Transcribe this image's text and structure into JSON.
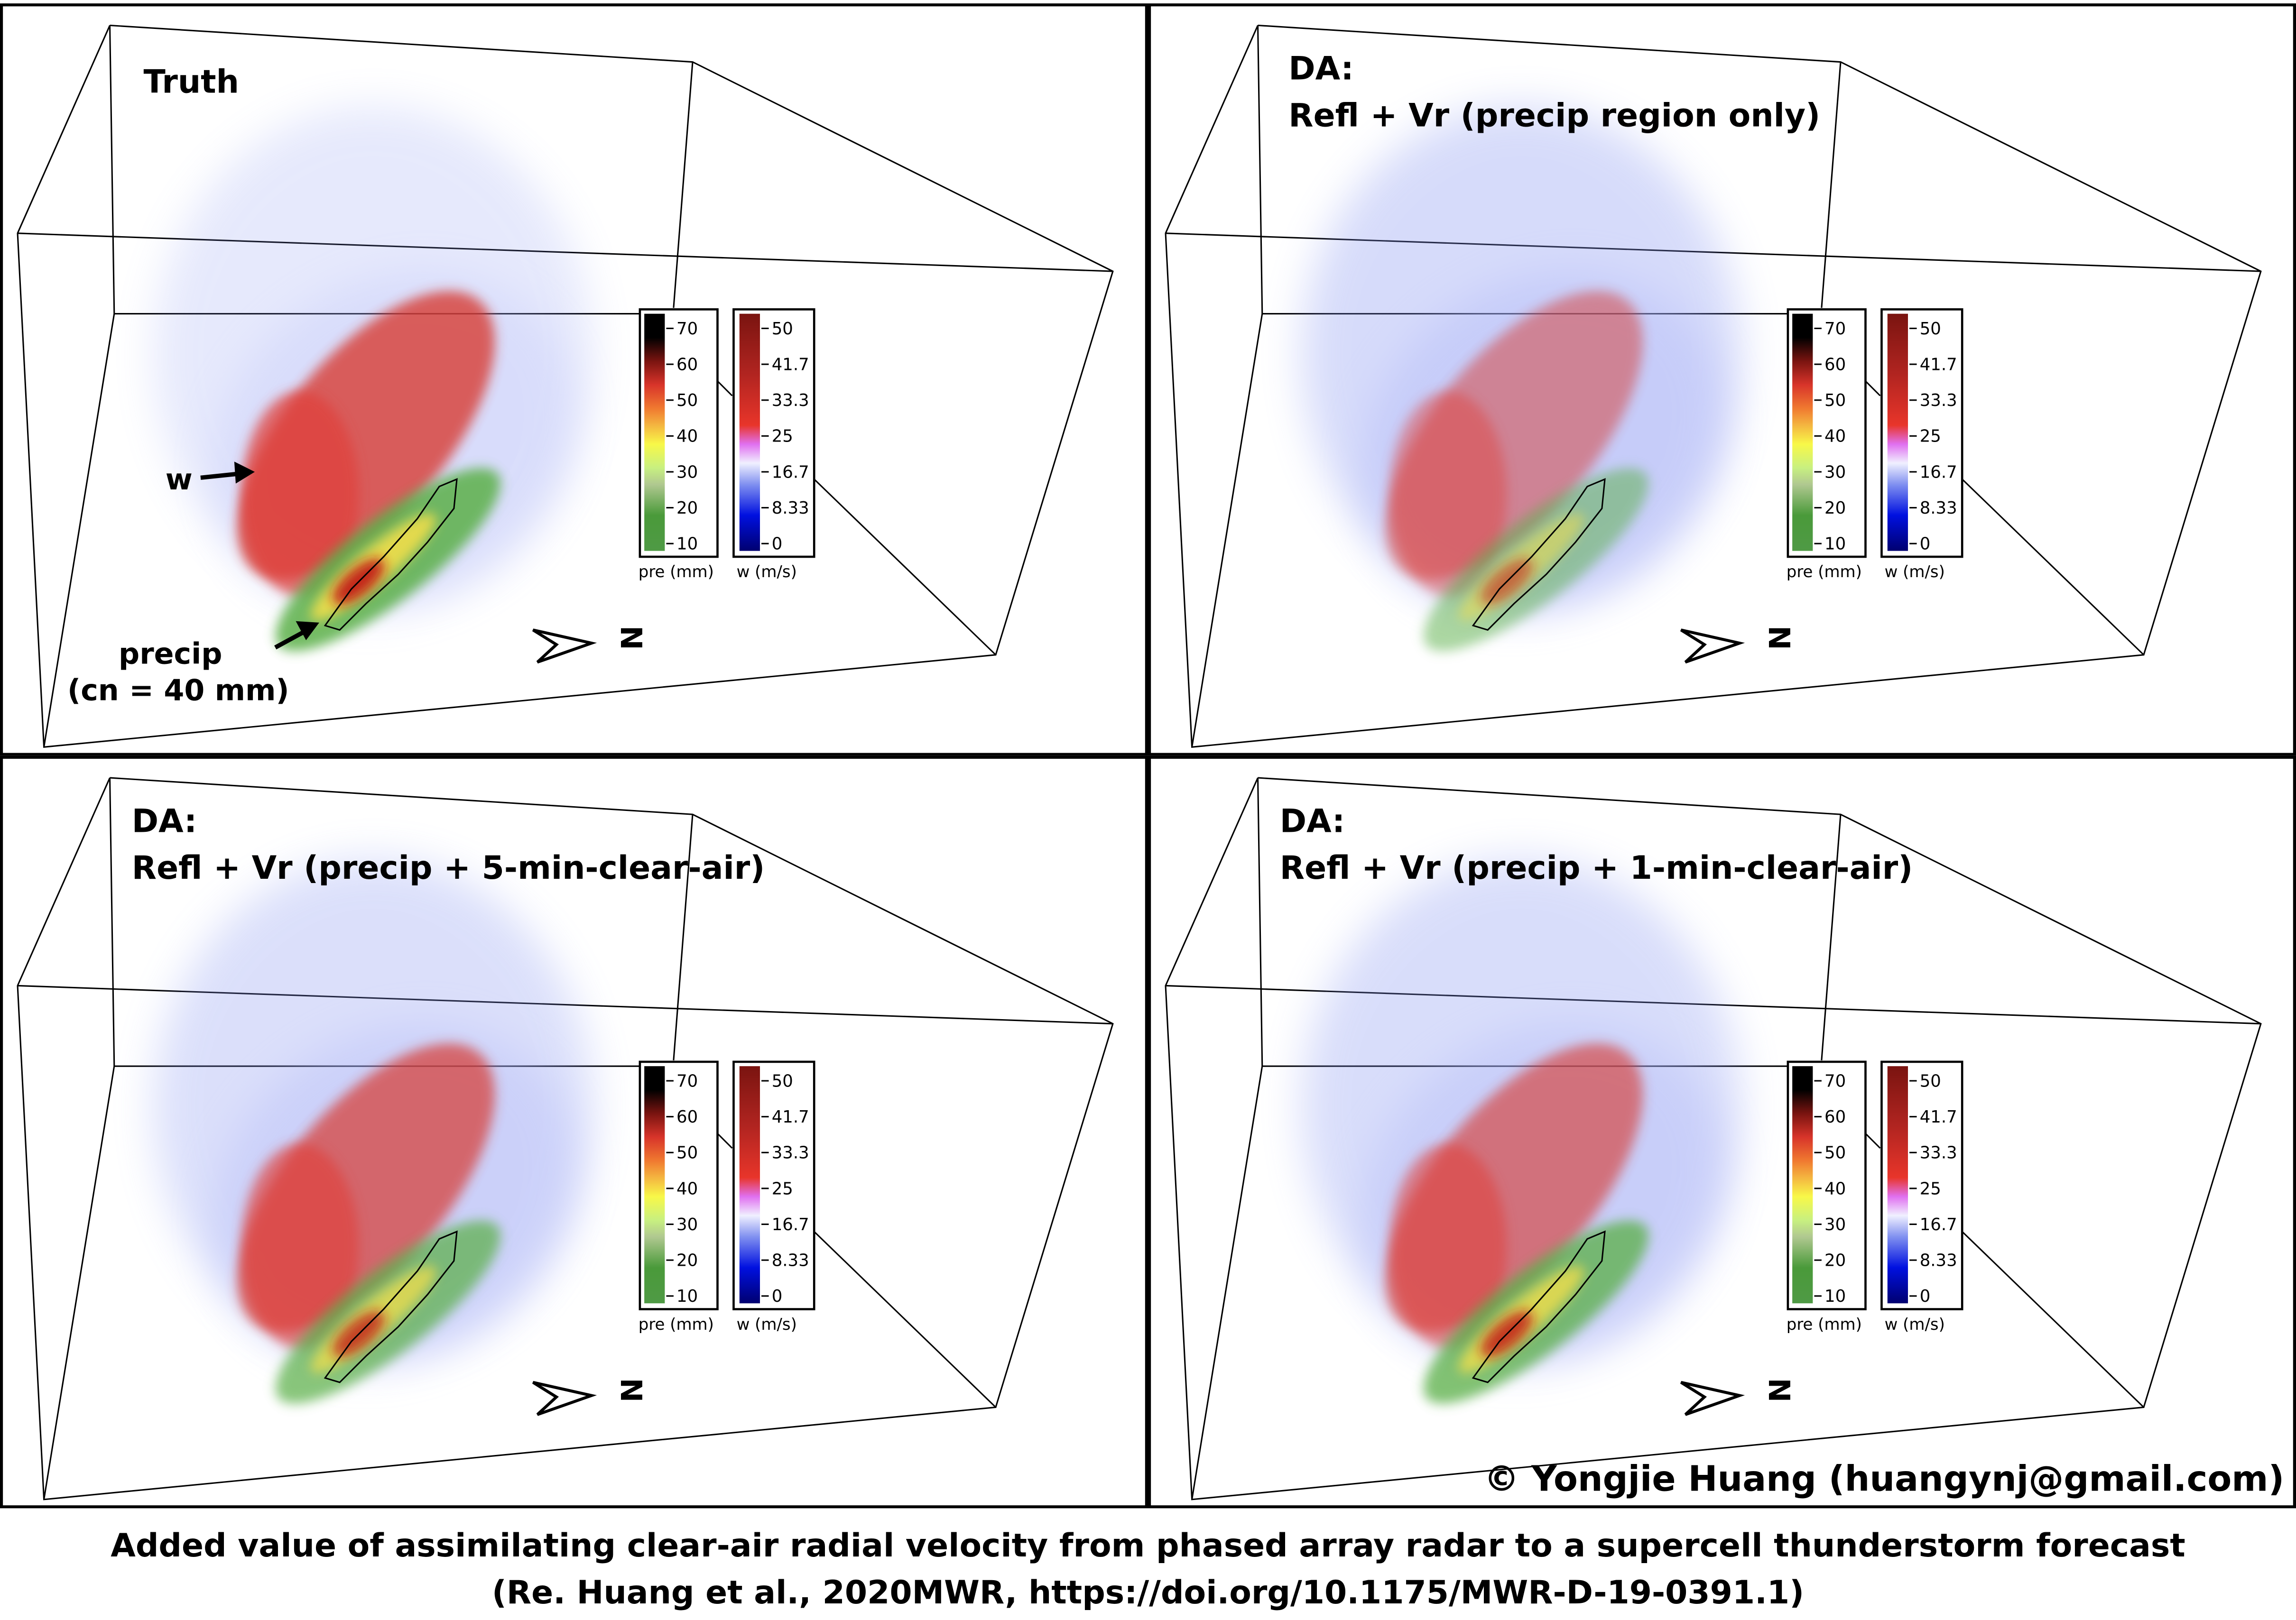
{
  "panels": [
    {
      "title": "Truth",
      "subtitle": "",
      "variant": "truth",
      "annotations": {
        "w": "w",
        "precip": "precip",
        "contour": "(cn = 40 mm)"
      }
    },
    {
      "title": "DA:",
      "subtitle": "Refl + Vr (precip region only)",
      "variant": "da1"
    },
    {
      "title": "DA:",
      "subtitle": "Refl + Vr (precip + 5-min-clear-air)",
      "variant": "da5"
    },
    {
      "title": "DA:",
      "subtitle": "Refl + Vr (precip + 1-min-clear-air)",
      "variant": "da1min"
    }
  ],
  "colorbars": {
    "pre": {
      "label": "pre (mm)",
      "ticks": [
        "70",
        "60",
        "50",
        "40",
        "30",
        "20",
        "10"
      ],
      "colors": [
        "#000000",
        "#7a1410",
        "#d8342a",
        "#f4a338",
        "#f8f848",
        "#c8f080",
        "#b0c890",
        "#5cb048",
        "#4a9a3a"
      ]
    },
    "w": {
      "label": "w (m/s)",
      "ticks": [
        "50",
        "41.7",
        "33.3",
        "25",
        "16.7",
        "8.33",
        "0"
      ],
      "colors": [
        "#7a1410",
        "#b02420",
        "#d8342a",
        "#e8352a",
        "#e070f0",
        "#f0f0ff",
        "#5060f0",
        "#0010e0",
        "#000070"
      ]
    }
  },
  "compass": {
    "label": "N"
  },
  "copyright": "© Yongjie Huang (huangynj@gmail.com)",
  "caption": {
    "line1": "Added value of assimilating clear-air radial velocity from phased array radar to a supercell thunderstorm forecast",
    "line2": "(Re. Huang et al., 2020MWR, https://doi.org/10.1175/MWR-D-19-0391.1)"
  }
}
